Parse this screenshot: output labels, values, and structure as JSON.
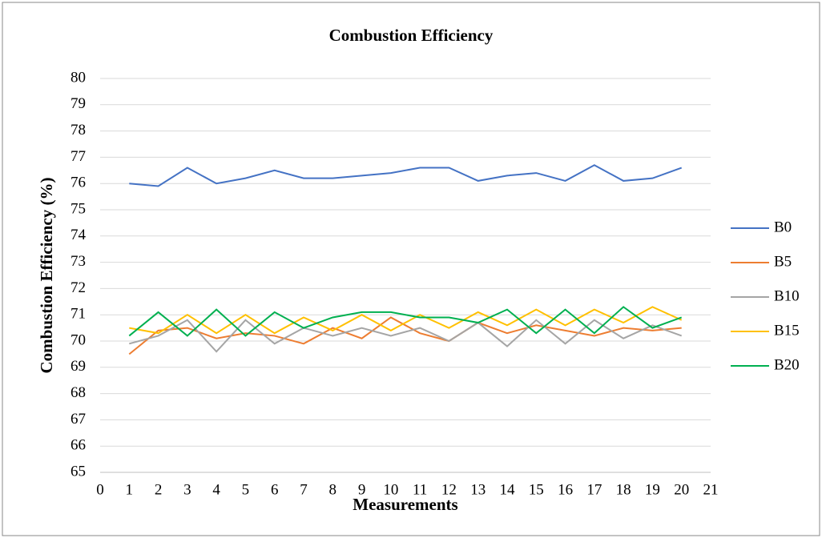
{
  "chart_data": {
    "type": "line",
    "title": "Combustion Efficiency",
    "xlabel": "Measurements",
    "ylabel": "Combustion Efficiency (%)",
    "x": [
      1,
      2,
      3,
      4,
      5,
      6,
      7,
      8,
      9,
      10,
      11,
      12,
      13,
      14,
      15,
      16,
      17,
      18,
      19,
      20
    ],
    "series": [
      {
        "name": "B0",
        "color": "#4472c4",
        "values": [
          76.0,
          75.9,
          76.6,
          76.0,
          76.2,
          76.5,
          76.2,
          76.2,
          76.3,
          76.4,
          76.6,
          76.6,
          76.1,
          76.3,
          76.4,
          76.1,
          76.7,
          76.1,
          76.2,
          76.6
        ]
      },
      {
        "name": "B5",
        "color": "#ed7d31",
        "values": [
          69.5,
          70.4,
          70.5,
          70.1,
          70.3,
          70.2,
          69.9,
          70.5,
          70.1,
          70.9,
          70.3,
          70.0,
          70.7,
          70.3,
          70.6,
          70.4,
          70.2,
          70.5,
          70.4,
          70.5
        ]
      },
      {
        "name": "B10",
        "color": "#a5a5a5",
        "values": [
          69.9,
          70.2,
          70.8,
          69.6,
          70.8,
          69.9,
          70.5,
          70.2,
          70.5,
          70.2,
          70.5,
          70.0,
          70.7,
          69.8,
          70.8,
          69.9,
          70.8,
          70.1,
          70.6,
          70.2
        ]
      },
      {
        "name": "B15",
        "color": "#ffc000",
        "values": [
          70.5,
          70.3,
          71.0,
          70.3,
          71.0,
          70.3,
          70.9,
          70.4,
          71.0,
          70.4,
          71.0,
          70.5,
          71.1,
          70.6,
          71.2,
          70.6,
          71.2,
          70.7,
          71.3,
          70.8
        ]
      },
      {
        "name": "B20",
        "color": "#00b050",
        "values": [
          70.2,
          71.1,
          70.2,
          71.2,
          70.2,
          71.1,
          70.5,
          70.9,
          71.1,
          71.1,
          70.9,
          70.9,
          70.7,
          71.2,
          70.3,
          71.2,
          70.3,
          71.3,
          70.5,
          70.9
        ]
      }
    ],
    "xlim": [
      0,
      21
    ],
    "xticks": [
      0,
      1,
      2,
      3,
      4,
      5,
      6,
      7,
      8,
      9,
      10,
      11,
      12,
      13,
      14,
      15,
      16,
      17,
      18,
      19,
      20,
      21
    ],
    "ylim": [
      65,
      80
    ],
    "yticks": [
      65,
      66,
      67,
      68,
      69,
      70,
      71,
      72,
      73,
      74,
      75,
      76,
      77,
      78,
      79,
      80
    ],
    "grid": true,
    "legend": "right"
  }
}
